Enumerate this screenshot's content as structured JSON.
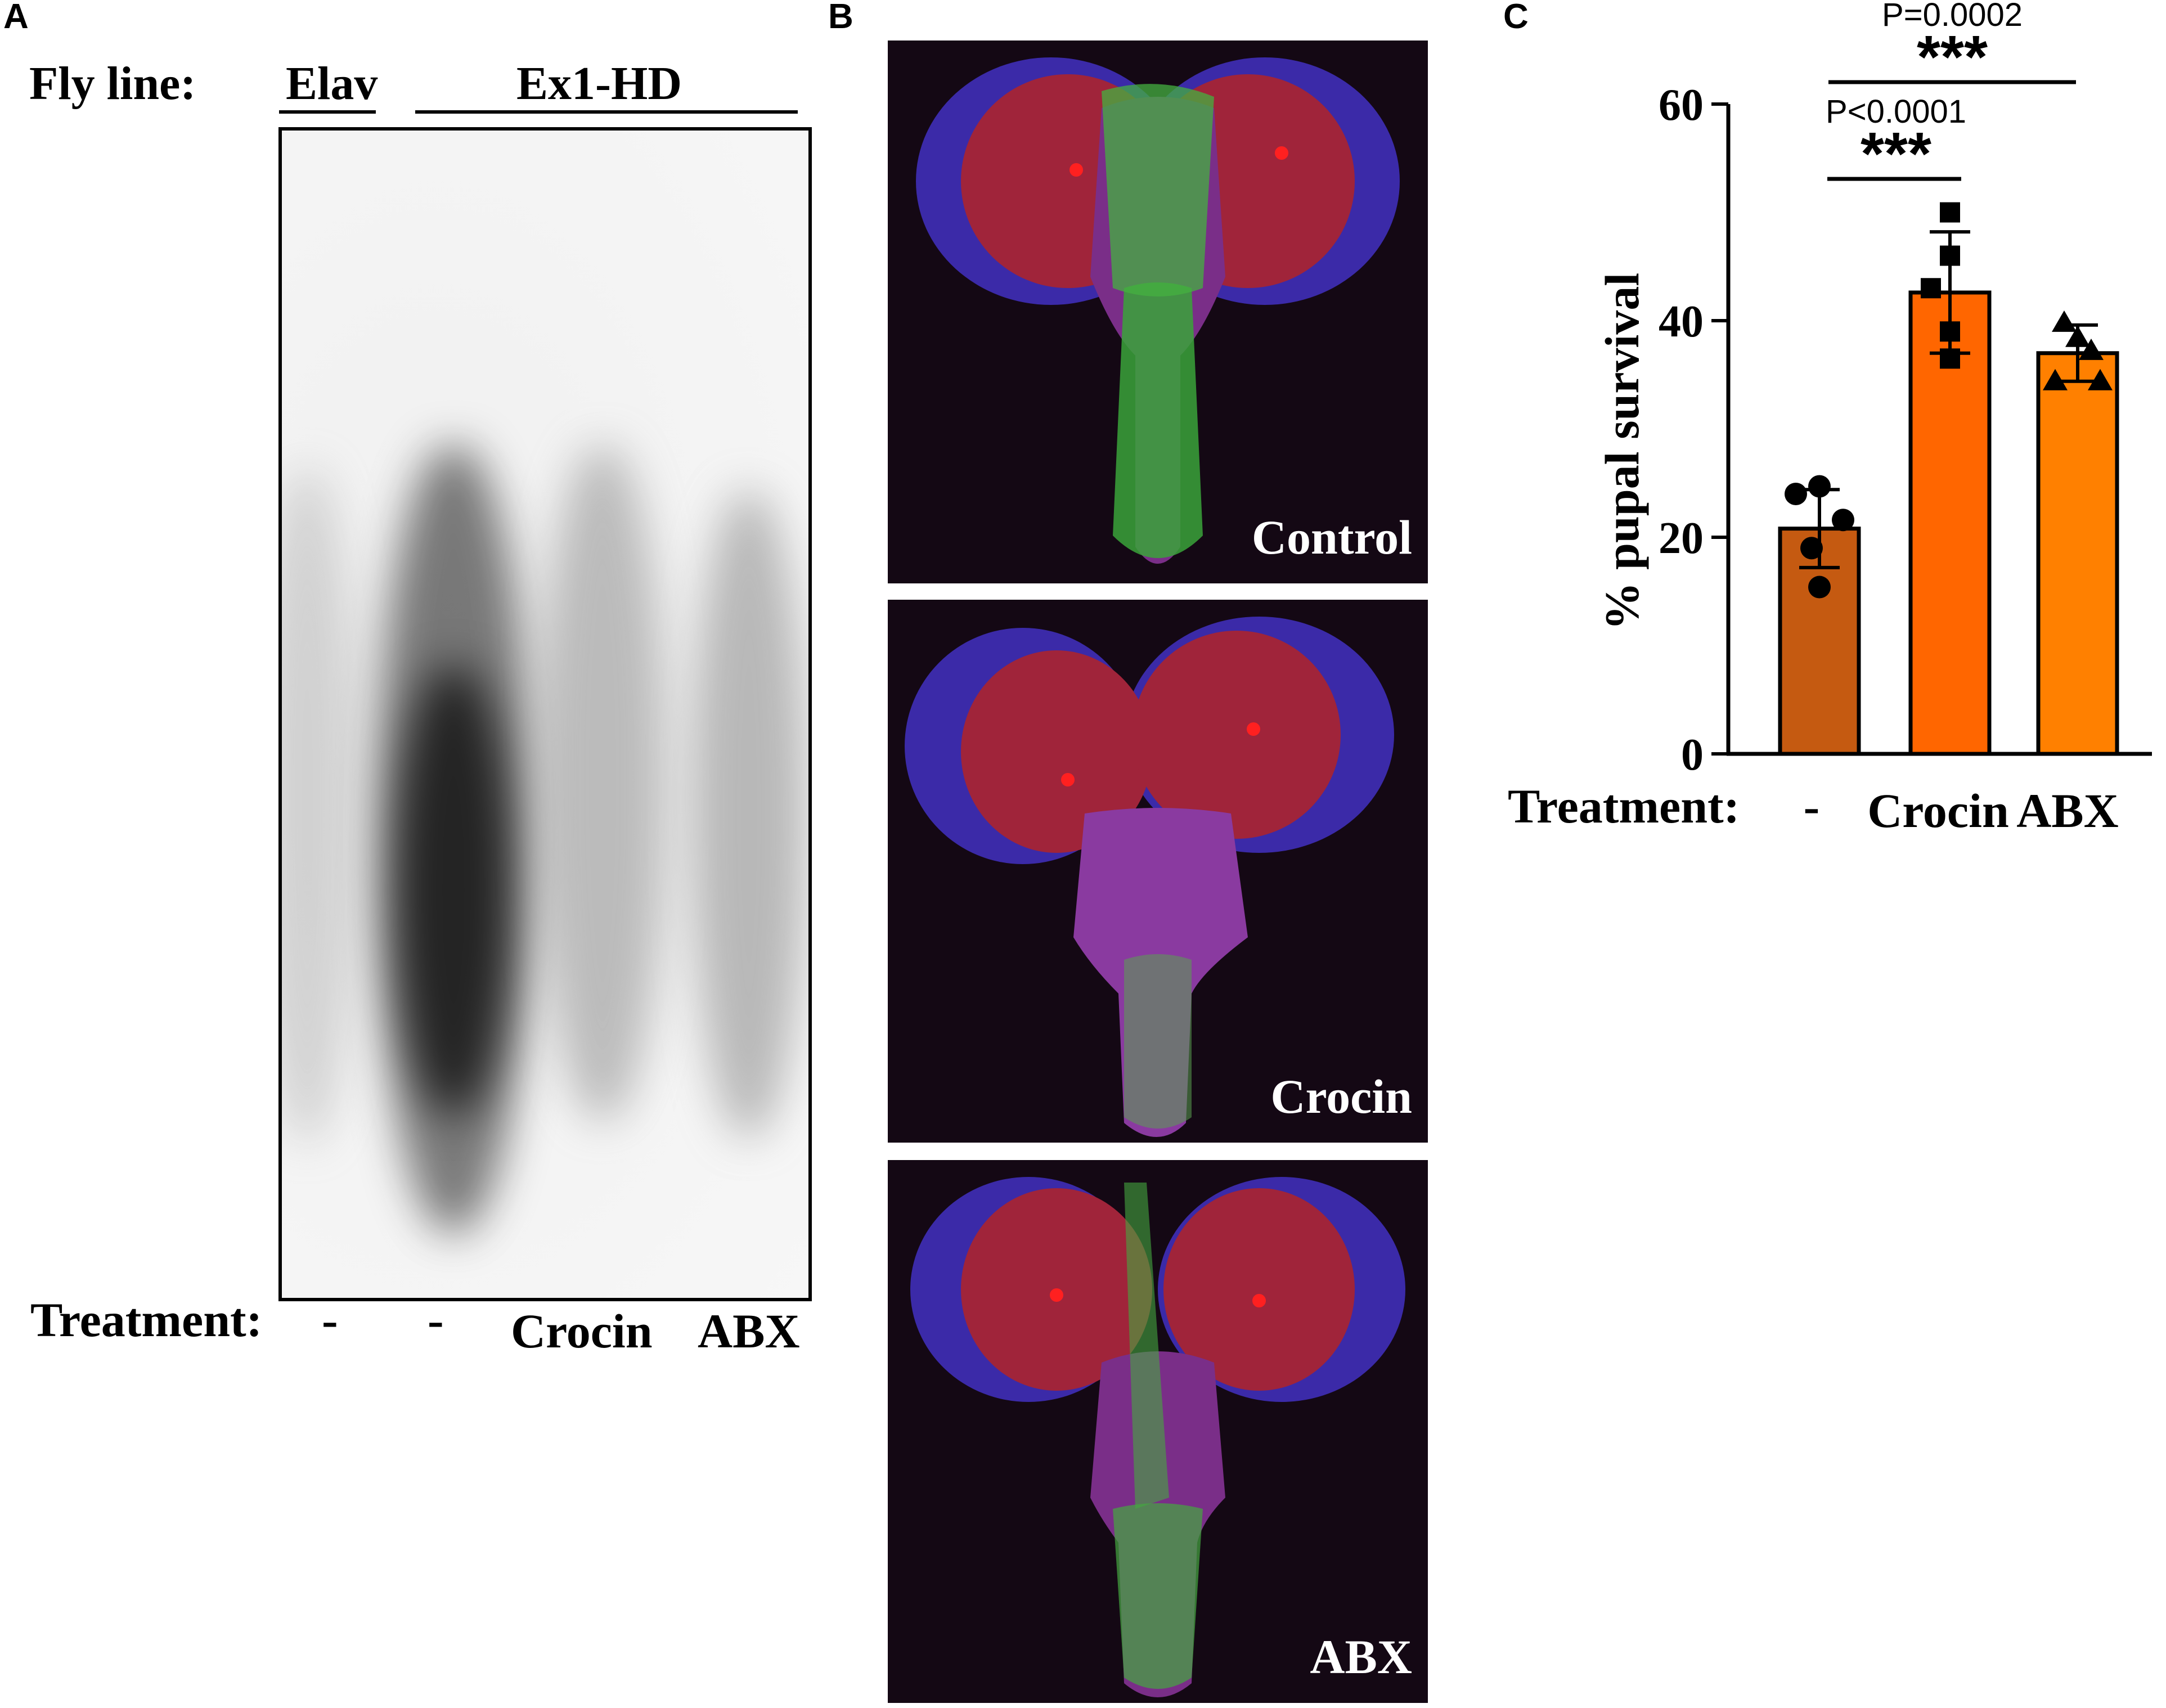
{
  "panels": {
    "a": {
      "letter": "A",
      "fly_line_label": "Fly line:",
      "lines": [
        "Elav",
        "Ex1-HD"
      ],
      "treatment_label": "Treatment:",
      "lanes": [
        "-",
        "-",
        "Crocin",
        "ABX"
      ]
    },
    "b": {
      "letter": "B",
      "images": [
        {
          "label": "Control"
        },
        {
          "label": "Crocin"
        },
        {
          "label": "ABX"
        }
      ]
    },
    "c": {
      "letter": "C",
      "treatment_label": "Treatment:",
      "stats": [
        {
          "p_text": "P<0.0001",
          "stars": "***"
        },
        {
          "p_text": "P=0.0002",
          "stars": "***"
        }
      ]
    }
  },
  "chart_data": {
    "type": "bar",
    "ylabel": "% pupal survival",
    "xlabel": "",
    "categories": [
      "-",
      "Crocin",
      "ABX"
    ],
    "values": [
      20.8,
      42.6,
      37.0
    ],
    "errors": [
      3.6,
      5.6,
      2.6
    ],
    "points": [
      [
        24.7,
        24.0,
        21.6,
        19.0,
        15.4
      ],
      [
        50.0,
        46.0,
        43.0,
        39.0,
        36.5
      ],
      [
        39.8,
        38.4,
        37.2,
        34.4,
        34.4
      ]
    ],
    "point_shapes": [
      "circle",
      "square",
      "triangle"
    ],
    "ylim": [
      0,
      60
    ],
    "yticks": [
      0,
      20,
      40,
      60
    ],
    "colors": [
      "#c55a11",
      "#ff6600",
      "#ff8000"
    ],
    "grid": false
  }
}
